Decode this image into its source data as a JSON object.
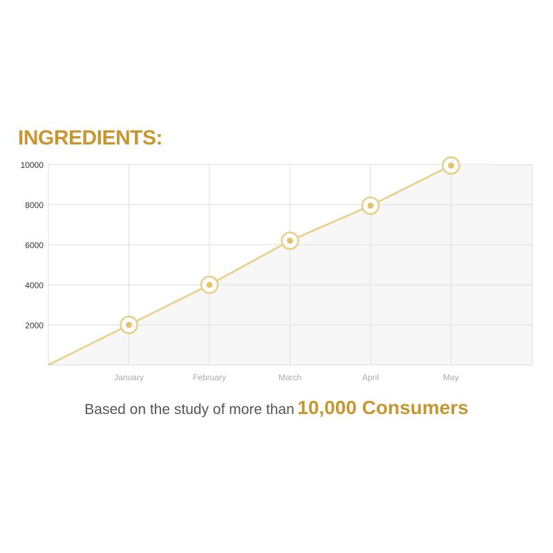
{
  "title": "INGREDIENTS:",
  "caption": {
    "text": "Based on the study of more than",
    "highlight": "10,000 Consumers"
  },
  "colors": {
    "accent": "#c8962e",
    "line": "#e8cd82",
    "marker_fill": "#e2c46e",
    "area": "#f7f7f7",
    "grid": "#dcdcdc"
  },
  "chart_data": {
    "type": "area",
    "categories": [
      "January",
      "February",
      "March",
      "April",
      "May"
    ],
    "series": [
      {
        "values": [
          2000,
          4000,
          6200,
          7950,
          9950
        ]
      }
    ],
    "origin": 0,
    "yticks": [
      2000,
      4000,
      6000,
      8000,
      10000
    ],
    "ylim": [
      0,
      10000
    ],
    "grid": true,
    "markers": "ring"
  }
}
